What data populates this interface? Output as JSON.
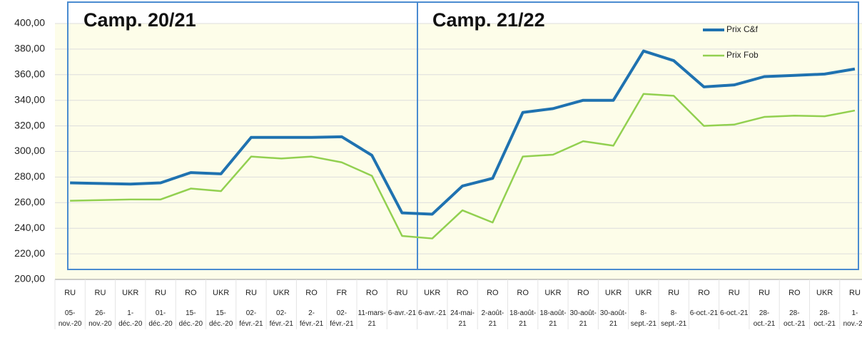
{
  "chart_data": {
    "type": "line",
    "annotations": [
      "Camp. 20/21",
      "Camp. 21/22"
    ],
    "origins": [
      "RU",
      "RU",
      "UKR",
      "RU",
      "RO",
      "UKR",
      "RU",
      "UKR",
      "RO",
      "FR",
      "RO",
      "RU",
      "UKR",
      "RO",
      "RO",
      "RO",
      "UKR",
      "RO",
      "UKR",
      "UKR",
      "RU",
      "RO",
      "RU",
      "RU",
      "RO",
      "UKR",
      "RU"
    ],
    "categories": [
      "05-nov.-20",
      "26-nov.-20",
      "1-déc.-20",
      "01-déc.-20",
      "15-déc.-20",
      "15-déc.-20",
      "02-févr.-21",
      "02-févr.-21",
      "2-févr.-21",
      "02-févr.-21",
      "11-mars-21",
      "6-avr.-21",
      "6-avr.-21",
      "24-mai-21",
      "2-août-21",
      "18-août-21",
      "18-août-21",
      "30-août-21",
      "30-août-21",
      "8-sept.-21",
      "8-sept.-21",
      "6-oct.-21",
      "6-oct.-21",
      "28-oct.-21",
      "28-oct.-21",
      "28-oct.-21",
      "1-nov.-21"
    ],
    "series": [
      {
        "name": "Prix C&f",
        "color": "#1f72b0",
        "values": [
          275.5,
          275,
          274.5,
          275.5,
          283.5,
          282.5,
          311,
          311,
          311,
          311.5,
          297,
          252,
          251,
          273,
          279,
          330.5,
          333.5,
          340,
          340,
          378.5,
          371,
          350.5,
          352,
          358.5,
          359.5,
          360.5,
          364.5
        ]
      },
      {
        "name": "Prix Fob",
        "color": "#92d050",
        "values": [
          261.5,
          262,
          262.5,
          262.5,
          271,
          269,
          296,
          294.5,
          296,
          291.5,
          281,
          234,
          232,
          254,
          244.5,
          296,
          297.5,
          308,
          304.5,
          345,
          343.5,
          320,
          321,
          327,
          328,
          327.5,
          332
        ]
      }
    ],
    "ylim": [
      200,
      400
    ],
    "yticks": [
      {
        "value": 200,
        "label": "200,00"
      },
      {
        "value": 220,
        "label": "220,00"
      },
      {
        "value": 240,
        "label": "240,00"
      },
      {
        "value": 260,
        "label": "260,00"
      },
      {
        "value": 280,
        "label": "280,00"
      },
      {
        "value": 300,
        "label": "300,00"
      },
      {
        "value": 320,
        "label": "320,00"
      },
      {
        "value": 340,
        "label": "340,00"
      },
      {
        "value": 360,
        "label": "360,00"
      },
      {
        "value": 380,
        "label": "380,00"
      },
      {
        "value": 400,
        "label": "400,00"
      }
    ],
    "grid": true
  }
}
